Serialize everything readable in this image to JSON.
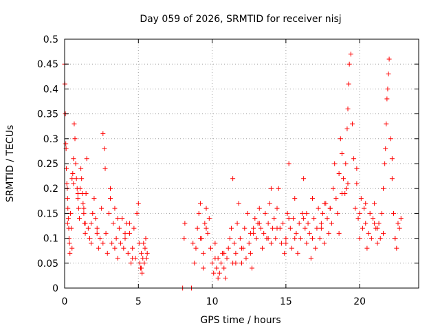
{
  "chart_data": {
    "type": "scatter",
    "title": "Day 059 of 2026, SRMTID for receiver nisj",
    "xlabel": "GPS time / hours",
    "ylabel": "SRMTID / TECUs",
    "xlim": [
      0,
      24
    ],
    "ylim": [
      0,
      0.5
    ],
    "x_ticks": [
      0,
      5,
      10,
      15,
      20
    ],
    "x_tick_labels": [
      "0",
      "5",
      "10",
      "15",
      "20"
    ],
    "y_ticks": [
      0,
      0.05,
      0.1,
      0.15,
      0.2,
      0.25,
      0.3,
      0.35,
      0.4,
      0.45,
      0.5
    ],
    "y_tick_labels": [
      "0",
      "0.05",
      "0.1",
      "0.15",
      "0.2",
      "0.25",
      "0.3",
      "0.35",
      "0.4",
      "0.45",
      "0.5"
    ],
    "grid": true,
    "marker": "plus",
    "marker_color": "#ff0000",
    "series": [
      {
        "name": "SRMTID",
        "x": [
          0.0,
          0.02,
          0.05,
          0.08,
          0.1,
          0.12,
          0.15,
          0.18,
          0.2,
          0.22,
          0.25,
          0.28,
          0.3,
          0.33,
          0.36,
          0.4,
          0.45,
          0.5,
          0.55,
          0.6,
          0.65,
          0.7,
          0.75,
          0.8,
          0.85,
          0.9,
          0.95,
          1.0,
          1.05,
          1.1,
          1.15,
          1.2,
          1.25,
          1.3,
          1.35,
          1.4,
          1.45,
          1.5,
          1.6,
          1.7,
          1.8,
          1.9,
          2.0,
          2.1,
          2.2,
          2.3,
          2.4,
          2.5,
          2.6,
          2.7,
          2.75,
          2.8,
          2.9,
          3.0,
          3.1,
          3.2,
          3.3,
          3.4,
          3.5,
          3.6,
          3.7,
          3.8,
          3.9,
          4.0,
          4.1,
          4.2,
          4.3,
          4.4,
          4.5,
          4.6,
          4.7,
          4.8,
          4.9,
          5.0,
          5.05,
          5.1,
          5.15,
          5.2,
          5.25,
          5.3,
          5.35,
          5.4,
          5.45,
          5.5,
          5.55,
          5.6,
          8.0,
          8.6,
          8.1,
          8.15,
          8.7,
          8.8,
          8.9,
          9.0,
          9.1,
          9.2,
          9.3,
          9.4,
          9.5,
          9.6,
          9.7,
          9.8,
          9.9,
          10.0,
          10.1,
          10.2,
          10.3,
          10.4,
          10.5,
          10.6,
          10.7,
          10.8,
          10.9,
          11.0,
          11.1,
          11.2,
          11.3,
          11.4,
          11.5,
          11.6,
          11.7,
          11.8,
          11.9,
          12.0,
          12.1,
          12.2,
          12.3,
          12.4,
          12.5,
          12.6,
          12.7,
          12.8,
          12.9,
          13.0,
          13.1,
          13.2,
          13.3,
          13.4,
          13.5,
          13.6,
          13.7,
          13.8,
          13.9,
          14.0,
          14.1,
          14.2,
          14.3,
          14.4,
          14.5,
          14.6,
          14.7,
          14.8,
          14.9,
          15.0,
          15.1,
          15.2,
          15.3,
          15.4,
          15.5,
          15.6,
          15.7,
          15.8,
          15.9,
          16.0,
          16.1,
          16.2,
          16.3,
          16.4,
          16.5,
          16.6,
          16.7,
          16.8,
          16.9,
          17.0,
          17.1,
          17.2,
          17.3,
          17.4,
          17.5,
          17.6,
          17.7,
          17.8,
          17.9,
          18.0,
          18.1,
          18.2,
          18.3,
          18.4,
          18.5,
          18.6,
          18.7,
          18.8,
          18.9,
          19.0,
          19.05,
          19.1,
          19.15,
          19.2,
          19.25,
          19.3,
          19.4,
          19.5,
          19.6,
          19.7,
          19.8,
          19.9,
          20.0,
          20.1,
          20.2,
          20.3,
          20.4,
          20.5,
          20.6,
          20.7,
          20.8,
          20.9,
          21.0,
          21.1,
          21.2,
          21.3,
          21.4,
          21.5,
          21.6,
          21.7,
          21.75,
          21.8,
          21.85,
          21.9,
          21.95,
          22.0,
          22.1,
          22.2,
          22.3,
          22.4,
          22.5,
          22.6,
          22.7,
          22.8,
          0.2,
          0.5,
          0.9,
          1.3,
          1.8,
          2.2,
          2.6,
          3.1,
          3.6,
          4.1,
          4.6,
          5.2,
          9.2,
          9.6,
          10.2,
          10.8,
          11.4,
          12.0,
          12.6,
          13.2,
          13.8,
          14.4,
          15.0,
          15.6,
          16.2,
          16.8,
          17.4,
          18.0,
          18.6,
          19.2,
          19.8,
          20.4,
          21.0,
          21.6,
          22.2,
          0.6,
          1.4,
          2.4,
          3.4,
          4.4,
          9.4,
          10.4,
          11.6,
          12.8,
          14.0,
          15.2,
          16.4,
          17.6,
          18.8,
          20.0,
          21.2,
          22.4
        ],
        "y": [
          0.45,
          0.41,
          0.35,
          0.29,
          0.28,
          0.24,
          0.21,
          0.2,
          0.18,
          0.16,
          0.14,
          0.12,
          0.1,
          0.09,
          0.07,
          0.15,
          0.12,
          0.08,
          0.23,
          0.26,
          0.33,
          0.3,
          0.25,
          0.22,
          0.2,
          0.18,
          0.16,
          0.14,
          0.2,
          0.24,
          0.22,
          0.19,
          0.17,
          0.15,
          0.13,
          0.11,
          0.19,
          0.26,
          0.12,
          0.1,
          0.09,
          0.15,
          0.18,
          0.14,
          0.12,
          0.08,
          0.1,
          0.16,
          0.31,
          0.28,
          0.24,
          0.11,
          0.07,
          0.15,
          0.2,
          0.09,
          0.13,
          0.16,
          0.1,
          0.06,
          0.12,
          0.09,
          0.14,
          0.08,
          0.1,
          0.13,
          0.07,
          0.11,
          0.05,
          0.08,
          0.12,
          0.06,
          0.15,
          0.17,
          0.09,
          0.05,
          0.04,
          0.07,
          0.03,
          0.06,
          0.09,
          0.05,
          0.08,
          0.1,
          0.06,
          0.07,
          0.0,
          0.0,
          0.1,
          0.13,
          0.09,
          0.05,
          0.08,
          0.12,
          0.15,
          0.17,
          0.1,
          0.07,
          0.13,
          0.16,
          0.11,
          0.14,
          0.08,
          0.05,
          0.03,
          0.06,
          0.04,
          0.02,
          0.03,
          0.05,
          0.07,
          0.04,
          0.02,
          0.06,
          0.08,
          0.1,
          0.12,
          0.22,
          0.09,
          0.07,
          0.13,
          0.17,
          0.1,
          0.05,
          0.08,
          0.12,
          0.06,
          0.15,
          0.09,
          0.07,
          0.04,
          0.11,
          0.14,
          0.1,
          0.13,
          0.16,
          0.12,
          0.08,
          0.11,
          0.15,
          0.1,
          0.13,
          0.17,
          0.09,
          0.12,
          0.14,
          0.1,
          0.16,
          0.2,
          0.12,
          0.09,
          0.13,
          0.07,
          0.1,
          0.15,
          0.25,
          0.12,
          0.08,
          0.14,
          0.18,
          0.11,
          0.07,
          0.13,
          0.1,
          0.15,
          0.22,
          0.12,
          0.09,
          0.13,
          0.11,
          0.06,
          0.1,
          0.14,
          0.08,
          0.12,
          0.16,
          0.1,
          0.13,
          0.15,
          0.09,
          0.17,
          0.14,
          0.11,
          0.16,
          0.13,
          0.2,
          0.25,
          0.18,
          0.15,
          0.23,
          0.3,
          0.27,
          0.22,
          0.19,
          0.25,
          0.2,
          0.32,
          0.36,
          0.41,
          0.45,
          0.47,
          0.33,
          0.26,
          0.16,
          0.21,
          0.14,
          0.1,
          0.18,
          0.12,
          0.16,
          0.13,
          0.08,
          0.11,
          0.15,
          0.1,
          0.14,
          0.17,
          0.12,
          0.09,
          0.13,
          0.1,
          0.15,
          0.2,
          0.25,
          0.28,
          0.33,
          0.38,
          0.4,
          0.43,
          0.46,
          0.3,
          0.22,
          0.15,
          0.1,
          0.08,
          0.13,
          0.12,
          0.14,
          0.13,
          0.22,
          0.19,
          0.16,
          0.13,
          0.11,
          0.09,
          0.18,
          0.14,
          0.11,
          0.06,
          0.04,
          0.1,
          0.12,
          0.09,
          0.07,
          0.05,
          0.08,
          0.11,
          0.13,
          0.1,
          0.12,
          0.09,
          0.1,
          0.14,
          0.18,
          0.12,
          0.16,
          0.11,
          0.21,
          0.24,
          0.17,
          0.13,
          0.11,
          0.26,
          0.21,
          0.13,
          0.1,
          0.08,
          0.13,
          0.04,
          0.06,
          0.05,
          0.12,
          0.2,
          0.14,
          0.15,
          0.17,
          0.19,
          0.15,
          0.12,
          0.1
        ]
      }
    ]
  }
}
